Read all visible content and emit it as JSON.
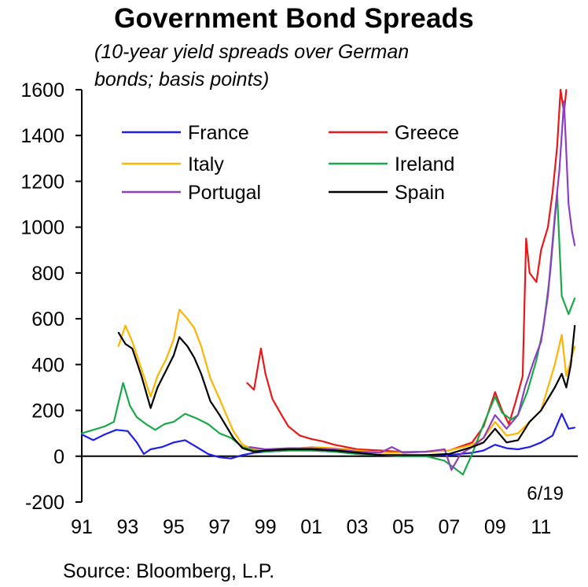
{
  "chart_data": {
    "type": "line",
    "title": "Government Bond Spreads",
    "subtitle_line1": "(10-year yield spreads over German",
    "subtitle_line2": "bonds; basis points)",
    "source": "Source: Bloomberg, L.P.",
    "annotation": "6/19",
    "ylim": [
      -200,
      1600
    ],
    "yticks": [
      -200,
      0,
      200,
      400,
      600,
      800,
      1000,
      1200,
      1400,
      1600
    ],
    "xlim": [
      1991.0,
      2012.6
    ],
    "xticks": [
      {
        "x": 1991.0,
        "label": "91"
      },
      {
        "x": 1993.0,
        "label": "93"
      },
      {
        "x": 1995.0,
        "label": "95"
      },
      {
        "x": 1997.0,
        "label": "97"
      },
      {
        "x": 1999.0,
        "label": "99"
      },
      {
        "x": 2001.0,
        "label": "01"
      },
      {
        "x": 2003.0,
        "label": "03"
      },
      {
        "x": 2005.0,
        "label": "05"
      },
      {
        "x": 2007.0,
        "label": "07"
      },
      {
        "x": 2009.0,
        "label": "09"
      },
      {
        "x": 2011.0,
        "label": "11"
      }
    ],
    "legend_position": "top",
    "series": [
      {
        "name": "France",
        "color": "#1f1fe8",
        "points": [
          [
            1991.0,
            95
          ],
          [
            1991.5,
            70
          ],
          [
            1992.0,
            95
          ],
          [
            1992.5,
            115
          ],
          [
            1993.0,
            110
          ],
          [
            1993.4,
            60
          ],
          [
            1993.7,
            10
          ],
          [
            1994.0,
            30
          ],
          [
            1994.5,
            40
          ],
          [
            1995.0,
            60
          ],
          [
            1995.5,
            70
          ],
          [
            1996.0,
            40
          ],
          [
            1996.5,
            10
          ],
          [
            1997.0,
            -5
          ],
          [
            1997.5,
            -10
          ],
          [
            1998.0,
            5
          ],
          [
            1998.5,
            15
          ],
          [
            1999.0,
            20
          ],
          [
            2000.0,
            25
          ],
          [
            2001.0,
            25
          ],
          [
            2002.0,
            20
          ],
          [
            2003.0,
            10
          ],
          [
            2004.0,
            5
          ],
          [
            2005.0,
            3
          ],
          [
            2006.0,
            2
          ],
          [
            2007.0,
            5
          ],
          [
            2008.0,
            15
          ],
          [
            2008.5,
            25
          ],
          [
            2009.0,
            50
          ],
          [
            2009.5,
            35
          ],
          [
            2010.0,
            30
          ],
          [
            2010.5,
            40
          ],
          [
            2011.0,
            60
          ],
          [
            2011.5,
            90
          ],
          [
            2011.9,
            185
          ],
          [
            2012.2,
            120
          ],
          [
            2012.47,
            125
          ]
        ]
      },
      {
        "name": "Greece",
        "color": "#e81818",
        "points": [
          [
            1998.2,
            320
          ],
          [
            1998.5,
            290
          ],
          [
            1998.8,
            470
          ],
          [
            1999.0,
            360
          ],
          [
            1999.3,
            250
          ],
          [
            1999.7,
            180
          ],
          [
            2000.0,
            130
          ],
          [
            2000.5,
            90
          ],
          [
            2001.0,
            75
          ],
          [
            2001.5,
            65
          ],
          [
            2002.0,
            50
          ],
          [
            2002.5,
            40
          ],
          [
            2003.0,
            30
          ],
          [
            2004.0,
            25
          ],
          [
            2005.0,
            18
          ],
          [
            2006.0,
            20
          ],
          [
            2007.0,
            25
          ],
          [
            2008.0,
            60
          ],
          [
            2008.5,
            130
          ],
          [
            2009.0,
            280
          ],
          [
            2009.3,
            200
          ],
          [
            2009.6,
            140
          ],
          [
            2009.9,
            240
          ],
          [
            2010.2,
            350
          ],
          [
            2010.35,
            950
          ],
          [
            2010.5,
            800
          ],
          [
            2010.8,
            760
          ],
          [
            2011.0,
            900
          ],
          [
            2011.3,
            1000
          ],
          [
            2011.5,
            1150
          ],
          [
            2011.7,
            1350
          ],
          [
            2011.85,
            1600
          ],
          [
            2012.0,
            1500
          ],
          [
            2012.1,
            1600
          ]
        ]
      },
      {
        "name": "Italy",
        "color": "#ffb400",
        "points": [
          [
            1992.6,
            480
          ],
          [
            1992.9,
            570
          ],
          [
            1993.2,
            500
          ],
          [
            1993.6,
            380
          ],
          [
            1994.0,
            260
          ],
          [
            1994.3,
            350
          ],
          [
            1994.7,
            430
          ],
          [
            1995.0,
            510
          ],
          [
            1995.25,
            640
          ],
          [
            1995.6,
            600
          ],
          [
            1995.9,
            560
          ],
          [
            1996.2,
            480
          ],
          [
            1996.6,
            340
          ],
          [
            1997.0,
            250
          ],
          [
            1997.3,
            180
          ],
          [
            1997.6,
            110
          ],
          [
            1998.0,
            50
          ],
          [
            1998.5,
            30
          ],
          [
            1999.0,
            30
          ],
          [
            2000.0,
            30
          ],
          [
            2001.0,
            40
          ],
          [
            2002.0,
            35
          ],
          [
            2003.0,
            25
          ],
          [
            2004.0,
            15
          ],
          [
            2005.0,
            15
          ],
          [
            2006.0,
            20
          ],
          [
            2007.0,
            25
          ],
          [
            2008.0,
            50
          ],
          [
            2008.5,
            80
          ],
          [
            2009.0,
            150
          ],
          [
            2009.5,
            90
          ],
          [
            2010.0,
            100
          ],
          [
            2010.5,
            150
          ],
          [
            2011.0,
            200
          ],
          [
            2011.3,
            300
          ],
          [
            2011.6,
            400
          ],
          [
            2011.9,
            530
          ],
          [
            2012.1,
            350
          ],
          [
            2012.3,
            420
          ],
          [
            2012.47,
            480
          ]
        ]
      },
      {
        "name": "Ireland",
        "color": "#1aa84a",
        "points": [
          [
            1991.0,
            100
          ],
          [
            1991.5,
            115
          ],
          [
            1992.0,
            130
          ],
          [
            1992.4,
            150
          ],
          [
            1992.8,
            320
          ],
          [
            1993.1,
            220
          ],
          [
            1993.4,
            170
          ],
          [
            1993.8,
            140
          ],
          [
            1994.2,
            115
          ],
          [
            1994.6,
            140
          ],
          [
            1995.0,
            150
          ],
          [
            1995.5,
            185
          ],
          [
            1996.0,
            165
          ],
          [
            1996.5,
            140
          ],
          [
            1997.0,
            100
          ],
          [
            1997.5,
            80
          ],
          [
            1998.0,
            40
          ],
          [
            1998.5,
            25
          ],
          [
            1999.0,
            20
          ],
          [
            2000.0,
            25
          ],
          [
            2001.0,
            25
          ],
          [
            2002.0,
            20
          ],
          [
            2003.0,
            10
          ],
          [
            2004.0,
            5
          ],
          [
            2005.0,
            0
          ],
          [
            2006.0,
            0
          ],
          [
            2006.8,
            -20
          ],
          [
            2007.2,
            -50
          ],
          [
            2007.6,
            -80
          ],
          [
            2008.0,
            10
          ],
          [
            2008.5,
            140
          ],
          [
            2009.0,
            260
          ],
          [
            2009.3,
            190
          ],
          [
            2009.7,
            160
          ],
          [
            2010.0,
            180
          ],
          [
            2010.4,
            280
          ],
          [
            2010.8,
            420
          ],
          [
            2011.1,
            560
          ],
          [
            2011.4,
            800
          ],
          [
            2011.7,
            1150
          ],
          [
            2011.9,
            700
          ],
          [
            2012.2,
            620
          ],
          [
            2012.47,
            690
          ]
        ]
      },
      {
        "name": "Portugal",
        "color": "#8e3fbf",
        "points": [
          [
            1998.3,
            40
          ],
          [
            1999.0,
            30
          ],
          [
            2000.0,
            35
          ],
          [
            2001.0,
            35
          ],
          [
            2002.0,
            30
          ],
          [
            2003.0,
            20
          ],
          [
            2004.0,
            15
          ],
          [
            2004.5,
            40
          ],
          [
            2005.0,
            15
          ],
          [
            2006.0,
            20
          ],
          [
            2006.8,
            30
          ],
          [
            2007.1,
            -60
          ],
          [
            2007.5,
            10
          ],
          [
            2008.0,
            40
          ],
          [
            2008.5,
            80
          ],
          [
            2009.0,
            180
          ],
          [
            2009.5,
            120
          ],
          [
            2010.0,
            180
          ],
          [
            2010.3,
            300
          ],
          [
            2010.7,
            420
          ],
          [
            2011.0,
            500
          ],
          [
            2011.3,
            700
          ],
          [
            2011.6,
            1050
          ],
          [
            2011.8,
            1250
          ],
          [
            2012.0,
            1550
          ],
          [
            2012.2,
            1100
          ],
          [
            2012.35,
            980
          ],
          [
            2012.47,
            920
          ]
        ]
      },
      {
        "name": "Spain",
        "color": "#000000",
        "points": [
          [
            1992.6,
            540
          ],
          [
            1992.9,
            490
          ],
          [
            1993.2,
            470
          ],
          [
            1993.6,
            350
          ],
          [
            1994.0,
            210
          ],
          [
            1994.3,
            300
          ],
          [
            1994.7,
            380
          ],
          [
            1995.0,
            440
          ],
          [
            1995.25,
            520
          ],
          [
            1995.6,
            480
          ],
          [
            1995.9,
            430
          ],
          [
            1996.2,
            360
          ],
          [
            1996.6,
            240
          ],
          [
            1997.0,
            180
          ],
          [
            1997.3,
            130
          ],
          [
            1997.6,
            80
          ],
          [
            1998.0,
            35
          ],
          [
            1998.5,
            20
          ],
          [
            1999.0,
            25
          ],
          [
            2000.0,
            30
          ],
          [
            2001.0,
            30
          ],
          [
            2002.0,
            25
          ],
          [
            2003.0,
            15
          ],
          [
            2004.0,
            5
          ],
          [
            2005.0,
            5
          ],
          [
            2006.0,
            5
          ],
          [
            2007.0,
            10
          ],
          [
            2008.0,
            40
          ],
          [
            2008.5,
            60
          ],
          [
            2009.0,
            120
          ],
          [
            2009.5,
            60
          ],
          [
            2010.0,
            70
          ],
          [
            2010.5,
            150
          ],
          [
            2011.0,
            200
          ],
          [
            2011.3,
            250
          ],
          [
            2011.6,
            300
          ],
          [
            2011.9,
            360
          ],
          [
            2012.1,
            300
          ],
          [
            2012.3,
            400
          ],
          [
            2012.47,
            570
          ]
        ]
      }
    ]
  }
}
